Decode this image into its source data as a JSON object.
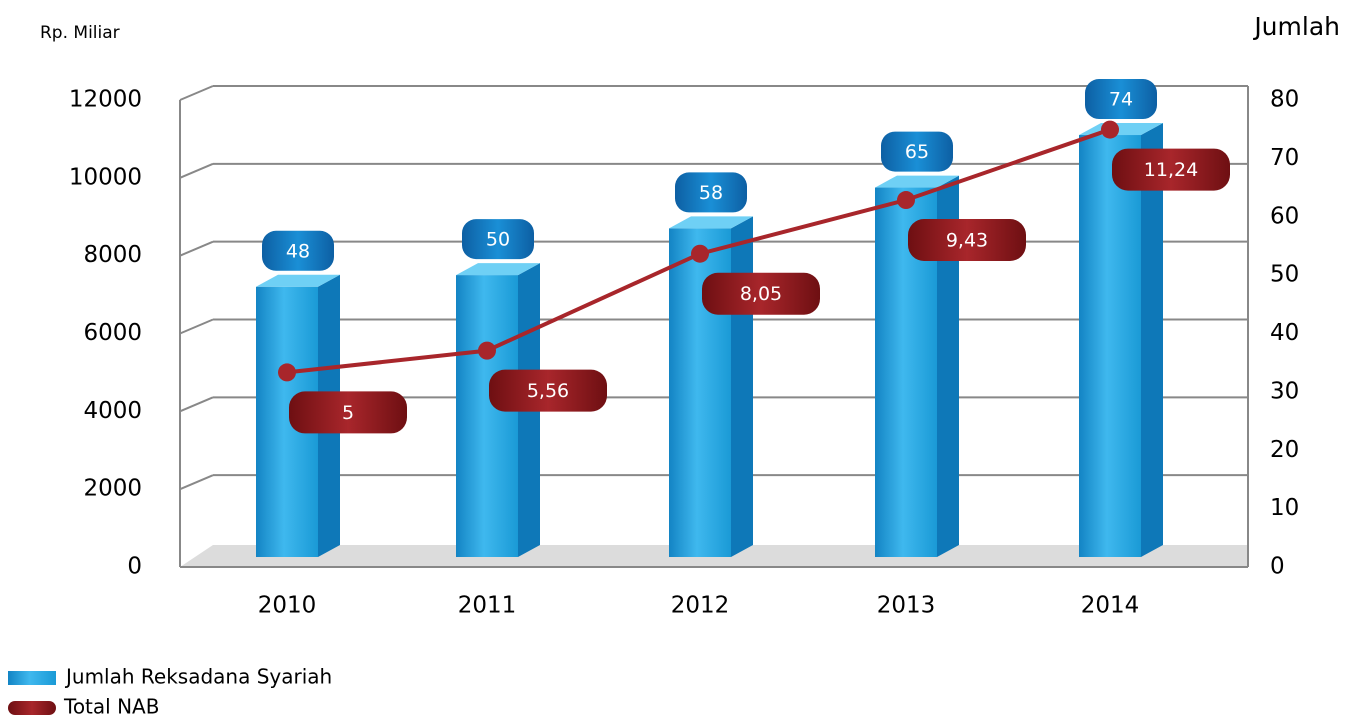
{
  "chart_data": {
    "type": "bar_line",
    "y_label": "Rp. Miliar",
    "y2_label": "Jumlah",
    "categories": [
      "2010",
      "2011",
      "2012",
      "2013",
      "2014"
    ],
    "series": [
      {
        "name": "Jumlah Reksadana Syariah",
        "type": "bar",
        "axis": "y2",
        "color": "#1a9ad6",
        "values": [
          48,
          50,
          58,
          65,
          74
        ]
      },
      {
        "name": "Total NAB",
        "type": "line",
        "axis": "y",
        "color": "#a8262b",
        "values": [
          5000,
          5560,
          8050,
          9430,
          11240
        ],
        "value_labels": [
          "5",
          "5,56",
          "8,05",
          "9,43",
          "11,24"
        ]
      }
    ],
    "ylim": [
      0,
      12000
    ],
    "yticks": [
      0,
      2000,
      4000,
      6000,
      8000,
      10000,
      12000
    ],
    "y2lim": [
      0,
      80
    ],
    "y2ticks": [
      0,
      10,
      20,
      30,
      40,
      50,
      60,
      70,
      80
    ],
    "grid": true,
    "legend": "bottom-left"
  }
}
